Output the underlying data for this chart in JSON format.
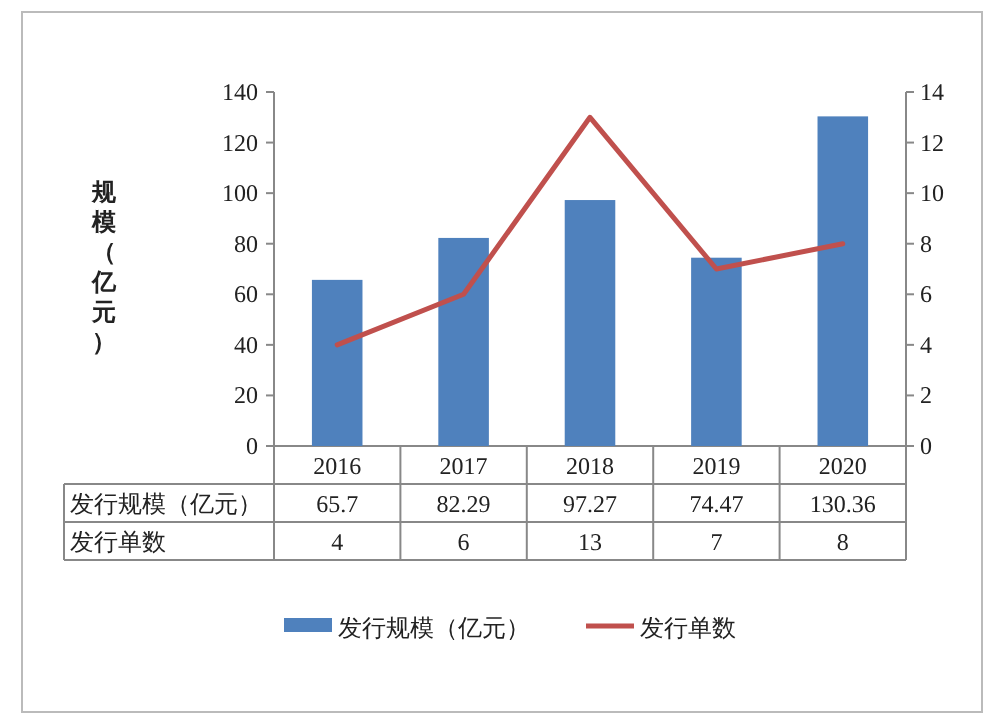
{
  "chart_data": {
    "type": "bar",
    "ylabel": "规模（亿元）",
    "categories": [
      "2016",
      "2017",
      "2018",
      "2019",
      "2020"
    ],
    "series": [
      {
        "name": "发行规模（亿元）",
        "color": "#4f81bd",
        "values": [
          65.7,
          82.29,
          97.27,
          74.47,
          130.36
        ]
      },
      {
        "name": "发行单数",
        "type": "line",
        "axis": "y2",
        "color": "#c0504d",
        "values": [
          4,
          6,
          13,
          7,
          8
        ]
      }
    ],
    "ylim": [
      0,
      140
    ],
    "yticks": [
      0,
      20,
      40,
      60,
      80,
      100,
      120,
      140
    ],
    "y2lim": [
      0,
      14
    ],
    "y2ticks": [
      0,
      2,
      4,
      6,
      8,
      10,
      12,
      14
    ],
    "data_labels": true,
    "legend": "bottom",
    "marker": "none",
    "line_style": "solid"
  }
}
